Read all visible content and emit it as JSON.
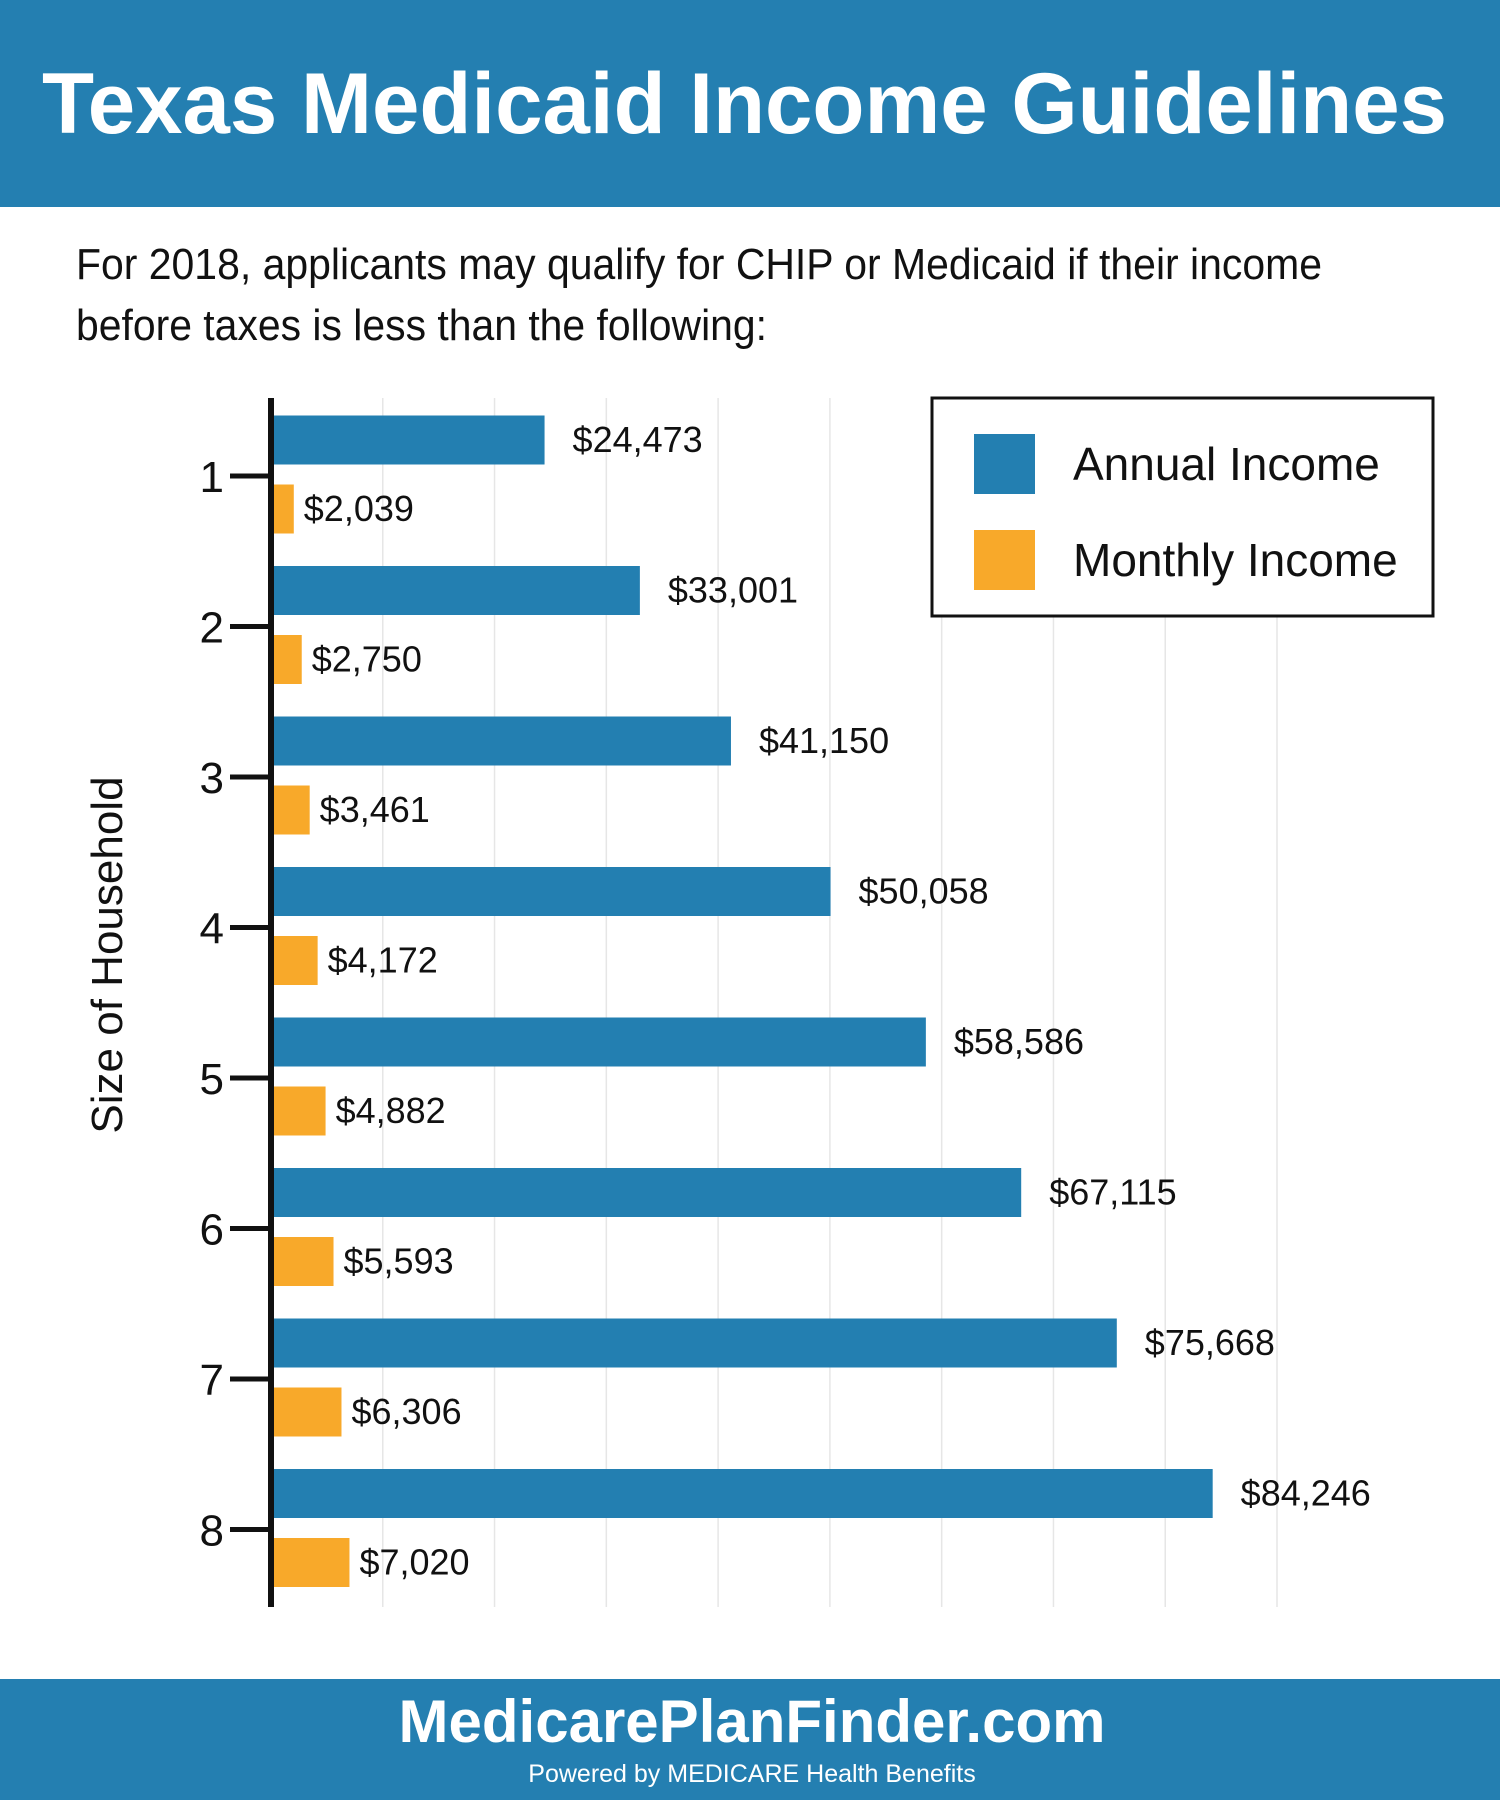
{
  "chart_data": {
    "type": "bar",
    "orientation": "horizontal",
    "title": "Texas Medicaid Income Guidelines",
    "subtitle": [
      "For 2018, applicants may qualify for CHIP or Medicaid if their income",
      "before taxes is less than the following:"
    ],
    "y_label": "Size of Household",
    "categories": [
      "1",
      "2",
      "3",
      "4",
      "5",
      "6",
      "7",
      "8"
    ],
    "series": [
      {
        "name": "Annual Income",
        "color": "#237fb1",
        "values": [
          24473,
          33001,
          41150,
          50058,
          58586,
          67115,
          75668,
          84246
        ],
        "value_labels": [
          "$24,473",
          "$33,001",
          "$41,150",
          "$50,058",
          "$58,586",
          "$67,115",
          "$75,668",
          "$84,246"
        ]
      },
      {
        "name": "Monthly Income",
        "color": "#f8a92a",
        "values": [
          2039,
          2750,
          3461,
          4172,
          4882,
          5593,
          6306,
          7020
        ],
        "value_labels": [
          "$2,039",
          "$2,750",
          "$3,461",
          "$4,172",
          "$4,882",
          "$5,593",
          "$6,306",
          "$7,020"
        ]
      }
    ],
    "xlim": [
      0,
      90000
    ],
    "xticks": [
      10000,
      20000,
      30000,
      40000,
      50000,
      60000,
      70000,
      80000,
      90000
    ],
    "grid": true,
    "legend": "top-right"
  },
  "footer": {
    "brand": "MedicarePlanFinder.com",
    "tagline": "Powered by MEDICARE Health Benefits"
  }
}
